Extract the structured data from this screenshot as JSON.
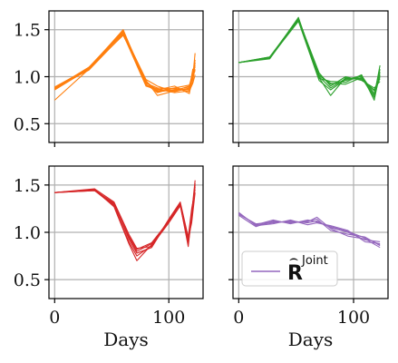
{
  "chart_data": [
    {
      "type": "line",
      "panel": "top-left",
      "color": "#ff7f0e",
      "xlim": [
        -5,
        130
      ],
      "ylim": [
        0.3,
        1.7
      ],
      "yticks": [
        0.5,
        1.0,
        1.5
      ],
      "ytick_labels": [
        "0.5",
        "1.0",
        "1.5"
      ],
      "xticks": [
        0,
        100
      ],
      "xtick_labels": [
        "",
        ""
      ],
      "xlabel": "",
      "grid": true,
      "series": [
        {
          "x": [
            0,
            30,
            60,
            80,
            90,
            105,
            118,
            121,
            123
          ],
          "y": [
            0.87,
            1.08,
            1.48,
            0.95,
            0.85,
            0.85,
            0.9,
            1.0,
            1.25
          ]
        },
        {
          "x": [
            0,
            30,
            60,
            80,
            90,
            105,
            118,
            121,
            123
          ],
          "y": [
            0.88,
            1.1,
            1.46,
            0.93,
            0.88,
            0.87,
            0.86,
            1.05,
            1.1
          ]
        },
        {
          "x": [
            0,
            30,
            60,
            80,
            90,
            105,
            118,
            121,
            123
          ],
          "y": [
            0.87,
            1.09,
            1.5,
            0.92,
            0.83,
            0.88,
            0.84,
            0.95,
            1.15
          ]
        },
        {
          "x": [
            0,
            30,
            60,
            80,
            90,
            105,
            118,
            121,
            123
          ],
          "y": [
            0.86,
            1.08,
            1.47,
            0.97,
            0.9,
            0.84,
            0.88,
            1.08,
            1.05
          ]
        },
        {
          "x": [
            0,
            30,
            60,
            80,
            90,
            105,
            118,
            121,
            123
          ],
          "y": [
            0.88,
            1.07,
            1.45,
            0.9,
            0.86,
            0.9,
            0.82,
            1.02,
            1.12
          ]
        },
        {
          "x": [
            0,
            30,
            60,
            80,
            90,
            105,
            118,
            121,
            123
          ],
          "y": [
            0.87,
            1.1,
            1.49,
            0.94,
            0.84,
            0.86,
            0.89,
            0.98,
            1.08
          ]
        },
        {
          "x": [
            0,
            30,
            60,
            80,
            90,
            105,
            118,
            121,
            123
          ],
          "y": [
            0.89,
            1.09,
            1.44,
            0.96,
            0.8,
            0.85,
            0.87,
            1.01,
            1.18
          ]
        },
        {
          "x": [
            0,
            30,
            60,
            80,
            90,
            105,
            118,
            121,
            123
          ],
          "y": [
            0.75,
            1.08,
            1.48,
            0.91,
            0.87,
            0.83,
            0.85,
            0.93,
            1.02
          ]
        },
        {
          "x": [
            0,
            30,
            60,
            80,
            90,
            105,
            118,
            121,
            123
          ],
          "y": [
            0.86,
            1.09,
            1.47,
            0.95,
            0.85,
            0.88,
            0.91,
            1.03,
            1.07
          ]
        }
      ]
    },
    {
      "type": "line",
      "panel": "top-right",
      "color": "#2ca02c",
      "xlim": [
        -5,
        130
      ],
      "ylim": [
        0.3,
        1.7
      ],
      "yticks": [
        0.5,
        1.0,
        1.5
      ],
      "ytick_labels": [
        "",
        "",
        ""
      ],
      "xticks": [
        0,
        100
      ],
      "xtick_labels": [
        "",
        ""
      ],
      "xlabel": "",
      "grid": true,
      "series": [
        {
          "x": [
            0,
            27,
            52,
            70,
            80,
            93,
            107,
            118,
            123
          ],
          "y": [
            1.15,
            1.2,
            1.62,
            1.02,
            0.92,
            0.96,
            1.0,
            0.8,
            1.12
          ]
        },
        {
          "x": [
            0,
            27,
            52,
            70,
            80,
            93,
            107,
            118,
            123
          ],
          "y": [
            1.15,
            1.21,
            1.6,
            1.0,
            0.88,
            0.98,
            0.98,
            0.85,
            1.0
          ]
        },
        {
          "x": [
            0,
            27,
            52,
            70,
            80,
            93,
            107,
            118,
            123
          ],
          "y": [
            1.15,
            1.2,
            1.63,
            0.98,
            0.95,
            0.94,
            1.02,
            0.75,
            1.05
          ]
        },
        {
          "x": [
            0,
            27,
            52,
            70,
            80,
            93,
            107,
            118,
            123
          ],
          "y": [
            1.15,
            1.19,
            1.61,
            1.04,
            0.9,
            1.0,
            0.96,
            0.88,
            0.95
          ]
        },
        {
          "x": [
            0,
            27,
            52,
            70,
            80,
            93,
            107,
            118,
            123
          ],
          "y": [
            1.15,
            1.2,
            1.59,
            0.96,
            0.86,
            0.97,
            1.01,
            0.82,
            1.08
          ]
        },
        {
          "x": [
            0,
            27,
            52,
            70,
            80,
            93,
            107,
            118,
            123
          ],
          "y": [
            1.15,
            1.21,
            1.62,
            1.01,
            0.93,
            0.92,
            0.99,
            0.78,
            1.02
          ]
        },
        {
          "x": [
            0,
            27,
            52,
            70,
            80,
            93,
            107,
            118,
            123
          ],
          "y": [
            1.15,
            1.2,
            1.6,
            0.99,
            0.8,
            0.99,
            0.97,
            0.86,
            0.98
          ]
        }
      ]
    },
    {
      "type": "line",
      "panel": "bottom-left",
      "color": "#d62728",
      "xlim": [
        -5,
        130
      ],
      "ylim": [
        0.3,
        1.7
      ],
      "yticks": [
        0.5,
        1.0,
        1.5
      ],
      "ytick_labels": [
        "0.5",
        "1.0",
        "1.5"
      ],
      "xticks": [
        0,
        100
      ],
      "xtick_labels": [
        "0",
        "100"
      ],
      "xlabel": "Days",
      "grid": true,
      "series": [
        {
          "x": [
            0,
            35,
            52,
            65,
            72,
            85,
            100,
            110,
            117,
            120,
            123
          ],
          "y": [
            1.42,
            1.45,
            1.3,
            0.95,
            0.8,
            0.88,
            1.12,
            1.3,
            0.92,
            1.2,
            1.55
          ]
        },
        {
          "x": [
            0,
            35,
            52,
            65,
            72,
            85,
            100,
            110,
            117,
            120,
            123
          ],
          "y": [
            1.42,
            1.44,
            1.28,
            0.9,
            0.75,
            0.86,
            1.1,
            1.28,
            0.88,
            1.15,
            1.5
          ]
        },
        {
          "x": [
            0,
            35,
            52,
            65,
            72,
            85,
            100,
            110,
            117,
            120,
            123
          ],
          "y": [
            1.42,
            1.46,
            1.32,
            0.98,
            0.83,
            0.85,
            1.14,
            1.32,
            0.95,
            1.25,
            1.45
          ]
        },
        {
          "x": [
            0,
            35,
            52,
            65,
            72,
            85,
            100,
            110,
            117,
            120,
            123
          ],
          "y": [
            1.42,
            1.45,
            1.27,
            0.88,
            0.7,
            0.87,
            1.11,
            1.29,
            0.85,
            1.18,
            1.52
          ]
        },
        {
          "x": [
            0,
            35,
            52,
            65,
            72,
            85,
            100,
            110,
            117,
            120,
            123
          ],
          "y": [
            1.42,
            1.44,
            1.31,
            0.93,
            0.78,
            0.84,
            1.13,
            1.31,
            0.9,
            1.22,
            1.48
          ]
        },
        {
          "x": [
            0,
            35,
            52,
            65,
            72,
            85,
            100,
            110,
            117,
            120,
            123
          ],
          "y": [
            1.42,
            1.45,
            1.29,
            0.96,
            0.82,
            0.89,
            1.12,
            1.3,
            0.93,
            1.1,
            1.42
          ]
        }
      ]
    },
    {
      "type": "line",
      "panel": "bottom-right",
      "color": "#9467bd",
      "xlim": [
        -5,
        130
      ],
      "ylim": [
        0.3,
        1.7
      ],
      "yticks": [
        0.5,
        1.0,
        1.5
      ],
      "ytick_labels": [
        "",
        "",
        ""
      ],
      "xticks": [
        0,
        100
      ],
      "xtick_labels": [
        "0",
        "100"
      ],
      "xlabel": "Days",
      "grid": true,
      "legend": {
        "label_base": "R",
        "label_sup": "Joint",
        "placement": "lower-left"
      },
      "series": [
        {
          "x": [
            0,
            15,
            30,
            45,
            60,
            68,
            80,
            95,
            110,
            123
          ],
          "y": [
            1.2,
            1.08,
            1.1,
            1.12,
            1.1,
            1.12,
            1.05,
            1.0,
            0.92,
            0.9
          ]
        },
        {
          "x": [
            0,
            15,
            30,
            45,
            60,
            68,
            80,
            95,
            110,
            123
          ],
          "y": [
            1.18,
            1.06,
            1.12,
            1.1,
            1.12,
            1.14,
            1.02,
            0.98,
            0.95,
            0.86
          ]
        },
        {
          "x": [
            0,
            15,
            30,
            45,
            60,
            68,
            80,
            95,
            110,
            123
          ],
          "y": [
            1.21,
            1.07,
            1.09,
            1.13,
            1.08,
            1.1,
            1.07,
            1.02,
            0.9,
            0.88
          ]
        },
        {
          "x": [
            0,
            15,
            30,
            45,
            60,
            68,
            80,
            95,
            110,
            123
          ],
          "y": [
            1.19,
            1.09,
            1.11,
            1.11,
            1.11,
            1.16,
            1.04,
            0.96,
            0.93,
            0.84
          ]
        },
        {
          "x": [
            0,
            15,
            30,
            45,
            60,
            68,
            80,
            95,
            110,
            123
          ],
          "y": [
            1.2,
            1.08,
            1.13,
            1.09,
            1.13,
            1.11,
            1.06,
            1.01,
            0.94,
            0.87
          ]
        }
      ]
    }
  ]
}
